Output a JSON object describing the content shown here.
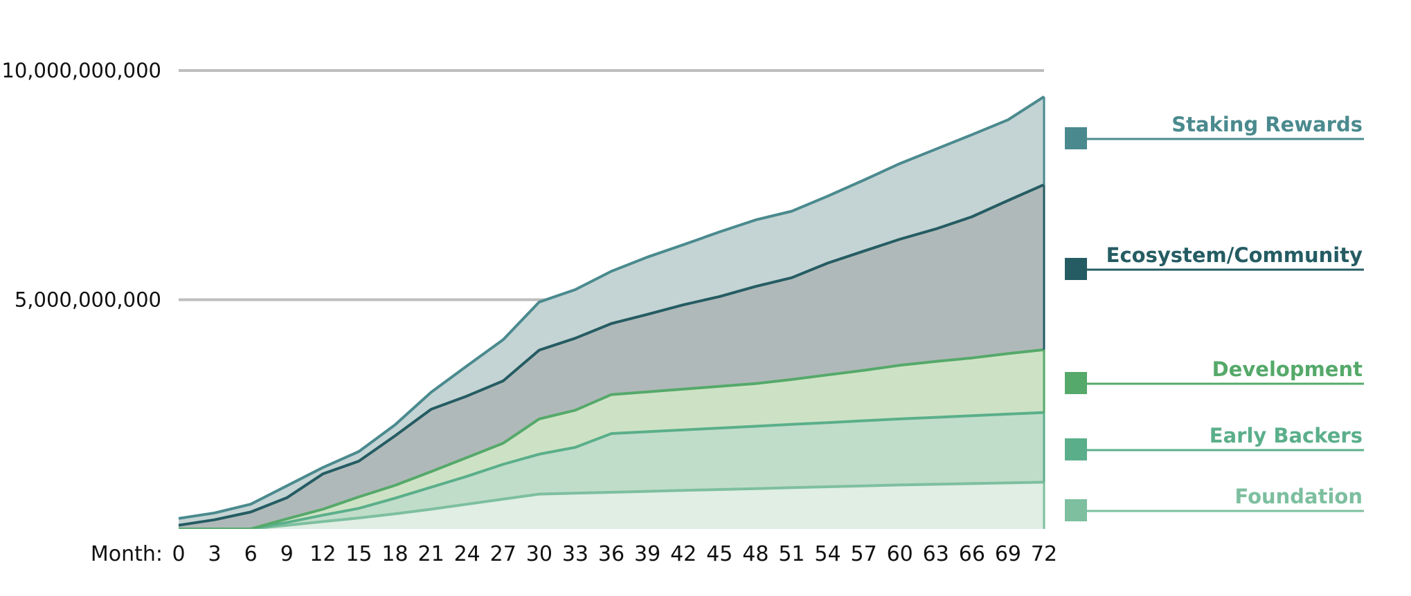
{
  "chart_data": {
    "type": "area",
    "stacked": true,
    "x_prefix_label": "Month:",
    "x": [
      0,
      3,
      6,
      9,
      12,
      15,
      18,
      21,
      24,
      27,
      30,
      33,
      36,
      39,
      42,
      45,
      48,
      51,
      54,
      57,
      60,
      63,
      66,
      69,
      72
    ],
    "xlim": [
      0,
      72
    ],
    "ylim": [
      0,
      10000000000
    ],
    "yticks": [
      5000000000,
      10000000000
    ],
    "ytick_labels": [
      "5,000,000,000",
      "10,000,000,000"
    ],
    "grid": true,
    "legend_position": "right",
    "series": [
      {
        "name": "Foundation",
        "color": "#7dbf9f",
        "fill": "#e0eee4",
        "values": [
          0,
          0,
          0,
          80000000,
          160000000,
          240000000,
          330000000,
          430000000,
          540000000,
          650000000,
          760000000,
          780000000,
          800000000,
          820000000,
          840000000,
          860000000,
          880000000,
          900000000,
          920000000,
          940000000,
          960000000,
          975000000,
          990000000,
          1005000000,
          1020000000
        ]
      },
      {
        "name": "Early Backers",
        "color": "#5aaf8a",
        "fill": "#c0ddca",
        "values": [
          0,
          0,
          0,
          60000000,
          140000000,
          210000000,
          340000000,
          480000000,
          610000000,
          760000000,
          870000000,
          1000000000,
          1280000000,
          1300000000,
          1320000000,
          1340000000,
          1360000000,
          1380000000,
          1400000000,
          1420000000,
          1440000000,
          1460000000,
          1480000000,
          1500000000,
          1520000000
        ]
      },
      {
        "name": "Development",
        "color": "#55a96a",
        "fill": "#cde2c5",
        "values": [
          0,
          0,
          0,
          80000000,
          130000000,
          250000000,
          280000000,
          340000000,
          410000000,
          460000000,
          770000000,
          810000000,
          850000000,
          870000000,
          890000000,
          910000000,
          930000000,
          980000000,
          1040000000,
          1100000000,
          1170000000,
          1220000000,
          1260000000,
          1320000000,
          1370000000
        ]
      },
      {
        "name": "Ecosystem/Community",
        "color": "#255c63",
        "fill": "#b0b9b9",
        "values": [
          80000000,
          200000000,
          370000000,
          460000000,
          770000000,
          780000000,
          1080000000,
          1360000000,
          1340000000,
          1360000000,
          1500000000,
          1570000000,
          1550000000,
          1690000000,
          1840000000,
          1960000000,
          2120000000,
          2220000000,
          2440000000,
          2600000000,
          2750000000,
          2890000000,
          3080000000,
          3340000000,
          3600000000
        ]
      },
      {
        "name": "Staking Rewards",
        "color": "#4a8a8e",
        "fill": "#c4d3d3",
        "values": [
          150000000,
          150000000,
          170000000,
          260000000,
          140000000,
          210000000,
          240000000,
          370000000,
          660000000,
          900000000,
          1050000000,
          1060000000,
          1140000000,
          1250000000,
          1310000000,
          1410000000,
          1450000000,
          1450000000,
          1460000000,
          1550000000,
          1650000000,
          1740000000,
          1790000000,
          1760000000,
          1920000000
        ]
      }
    ]
  }
}
